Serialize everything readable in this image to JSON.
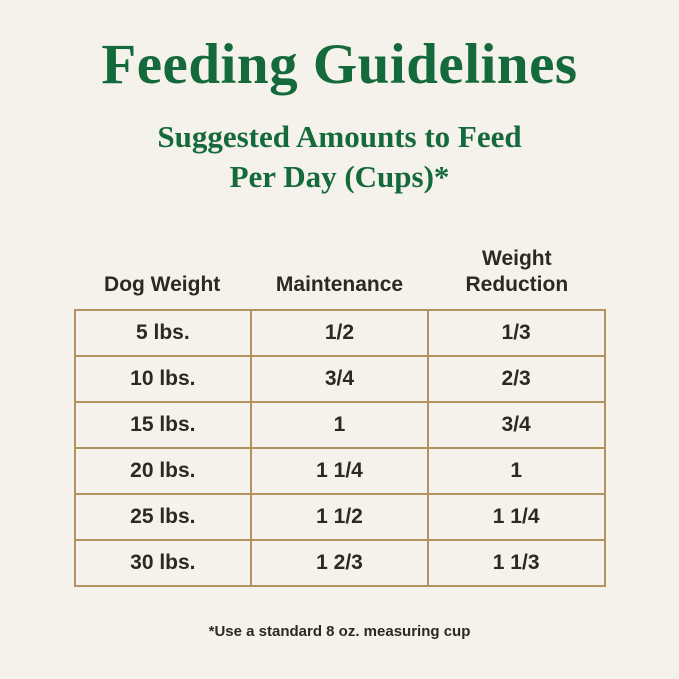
{
  "page": {
    "title": "Feeding Guidelines",
    "subtitle_line1": "Suggested Amounts to Feed",
    "subtitle_line2": "Per Day (Cups)*",
    "footnote": "*Use a standard 8 oz. measuring cup"
  },
  "colors": {
    "heading_green": "#156a3b",
    "table_border_tan": "#b2925f",
    "text_dark": "#2e2823",
    "background_cream": "#f5f2eb"
  },
  "chart_data": {
    "type": "table",
    "title": "Feeding Guidelines — Suggested Amounts to Feed Per Day (Cups)",
    "columns": [
      "Dog Weight",
      "Maintenance",
      "Weight Reduction"
    ],
    "rows": [
      [
        "5 lbs.",
        "1/2",
        "1/3"
      ],
      [
        "10 lbs.",
        "3/4",
        "2/3"
      ],
      [
        "15 lbs.",
        "1",
        "3/4"
      ],
      [
        "20 lbs.",
        "1 1/4",
        "1"
      ],
      [
        "25 lbs.",
        "1 1/2",
        "1 1/4"
      ],
      [
        "30 lbs.",
        "1 2/3",
        "1 1/3"
      ]
    ],
    "footnote": "*Use a standard 8 oz. measuring cup"
  }
}
